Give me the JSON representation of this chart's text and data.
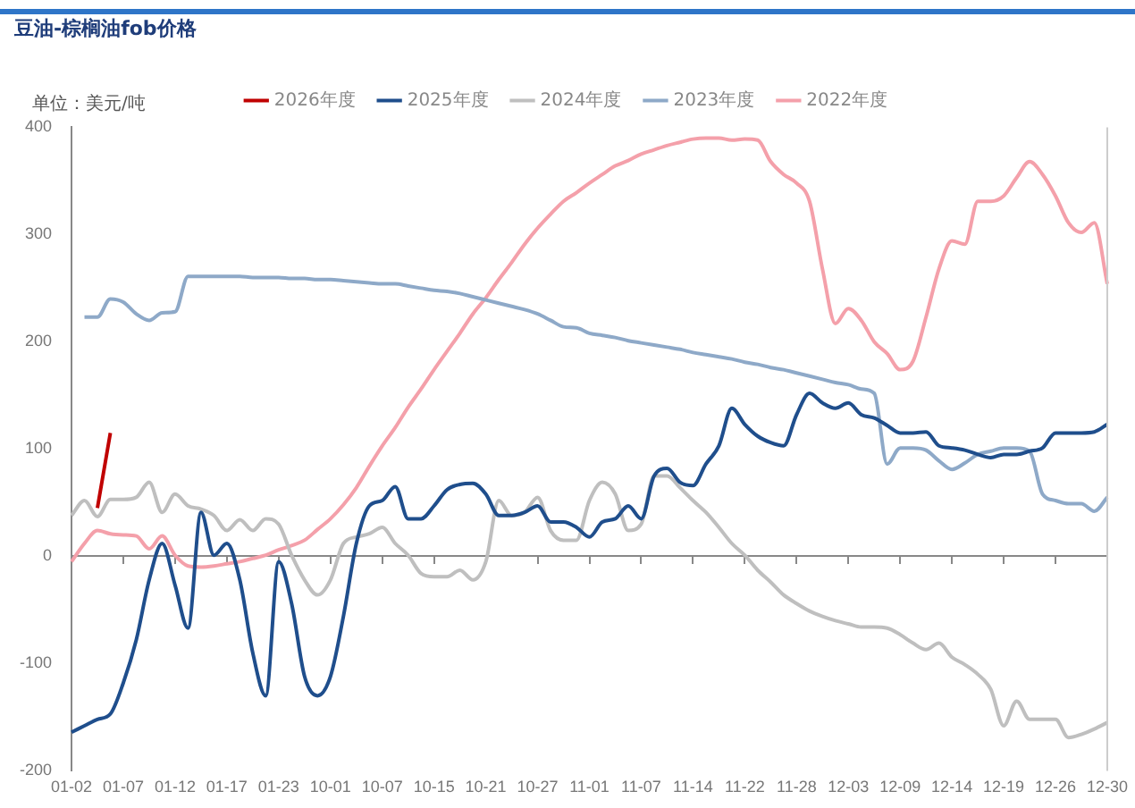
{
  "chart_data": {
    "type": "line",
    "title": "豆油-棕榈油fob价格",
    "ylabel": "单位：美元/吨",
    "categories": [
      "01-02",
      null,
      null,
      null,
      "01-07",
      null,
      null,
      null,
      "01-12",
      null,
      null,
      null,
      "01-17",
      null,
      null,
      null,
      "01-23",
      null,
      null,
      null,
      "10-01",
      null,
      null,
      null,
      "10-07",
      null,
      null,
      null,
      "10-15",
      null,
      null,
      null,
      "10-21",
      null,
      null,
      null,
      "10-27",
      null,
      null,
      null,
      "11-01",
      null,
      null,
      null,
      "11-07",
      null,
      null,
      null,
      "11-14",
      null,
      null,
      null,
      "11-22",
      null,
      null,
      null,
      "11-28",
      null,
      null,
      null,
      "12-03",
      null,
      null,
      null,
      "12-09",
      null,
      null,
      null,
      "12-14",
      null,
      null,
      null,
      "12-19",
      null,
      null,
      null,
      "12-26",
      null,
      null,
      null,
      "12-30"
    ],
    "series": [
      {
        "name": "2026年度",
        "color": "#c00000",
        "values": [
          null,
          null,
          45,
          115,
          null,
          null,
          null,
          null,
          null,
          null,
          null,
          null,
          null,
          null,
          null,
          null,
          null,
          null,
          null,
          null,
          null,
          null,
          null,
          null,
          null,
          null,
          null,
          null,
          null,
          null,
          null,
          null,
          null,
          null,
          null,
          null,
          null,
          null,
          null,
          null,
          null,
          null,
          null,
          null,
          null,
          null,
          null,
          null,
          null,
          null,
          null,
          null,
          null,
          null,
          null,
          null,
          null,
          null,
          null,
          null,
          null,
          null,
          null,
          null,
          null,
          null,
          null,
          null,
          null,
          null,
          null,
          null,
          null,
          null,
          null,
          null,
          null,
          null,
          null,
          null,
          null
        ]
      },
      {
        "name": "2025年度",
        "color": "#1f4e8c",
        "values": [
          -164,
          -158,
          -152,
          -147,
          -118,
          -78,
          -22,
          12,
          -27,
          -67,
          41,
          1,
          12,
          -22,
          -90,
          -130,
          -5,
          -44,
          -112,
          -130,
          -112,
          -56,
          12,
          47,
          52,
          65,
          35,
          35,
          47,
          62,
          67,
          68,
          58,
          38,
          38,
          41,
          47,
          32,
          32,
          27,
          18,
          32,
          35,
          47,
          35,
          75,
          82,
          69,
          66,
          86,
          103,
          138,
          123,
          112,
          106,
          103,
          132,
          152,
          143,
          138,
          143,
          132,
          129,
          122,
          115,
          115,
          116,
          103,
          101,
          99,
          95,
          92,
          95,
          95,
          98,
          101,
          115,
          115,
          115,
          116,
          123
        ]
      },
      {
        "name": "2024年度",
        "color": "#bfbfbf",
        "values": [
          38,
          52,
          37,
          53,
          53,
          55,
          69,
          41,
          58,
          47,
          44,
          38,
          24,
          34,
          24,
          35,
          30,
          1,
          -22,
          -36,
          -22,
          12,
          18,
          21,
          27,
          12,
          1,
          -16,
          -19,
          -19,
          -13,
          -22,
          -5,
          52,
          38,
          41,
          55,
          24,
          15,
          15,
          52,
          69,
          58,
          24,
          30,
          75,
          75,
          64,
          52,
          41,
          27,
          12,
          1,
          -13,
          -24,
          -36,
          -44,
          -51,
          -56,
          -60,
          -63,
          -66,
          -66,
          -67,
          -73,
          -81,
          -87,
          -81,
          -94,
          -101,
          -110,
          -124,
          -158,
          -135,
          -152,
          -152,
          -152,
          -169,
          -166,
          -161,
          -155
        ]
      },
      {
        "name": "2023年度",
        "color": "#8ea9c8",
        "values": [
          null,
          223,
          223,
          240,
          237,
          226,
          220,
          227,
          228,
          261,
          261,
          261,
          261,
          261,
          260,
          260,
          260,
          259,
          259,
          258,
          258,
          257,
          256,
          255,
          254,
          254,
          252,
          250,
          248,
          247,
          245,
          242,
          239,
          236,
          233,
          230,
          226,
          220,
          214,
          213,
          208,
          206,
          204,
          201,
          199,
          197,
          195,
          193,
          190,
          188,
          186,
          184,
          181,
          179,
          176,
          174,
          171,
          168,
          165,
          162,
          160,
          156,
          152,
          86,
          101,
          101,
          99,
          89,
          81,
          87,
          95,
          98,
          101,
          101,
          98,
          58,
          52,
          49,
          49,
          42,
          55
        ]
      },
      {
        "name": "2022年度",
        "color": "#f4a0aa",
        "values": [
          -5,
          12,
          24,
          21,
          20,
          19,
          7,
          19,
          1,
          -9,
          -10,
          -9,
          -7,
          -5,
          -2,
          1,
          6,
          10,
          15,
          25,
          35,
          48,
          64,
          84,
          103,
          120,
          139,
          156,
          174,
          191,
          208,
          226,
          241,
          258,
          274,
          291,
          306,
          319,
          331,
          339,
          348,
          356,
          364,
          369,
          375,
          379,
          383,
          386,
          389,
          390,
          390,
          388,
          389,
          388,
          368,
          356,
          348,
          331,
          268,
          217,
          231,
          220,
          200,
          189,
          174,
          182,
          223,
          268,
          294,
          291,
          331,
          331,
          336,
          353,
          368,
          356,
          336,
          311,
          302,
          311,
          254
        ]
      }
    ],
    "ylim": [
      -200,
      400
    ],
    "yticks": [
      -200,
      -100,
      0,
      100,
      200,
      300,
      400
    ],
    "legend": "top"
  }
}
